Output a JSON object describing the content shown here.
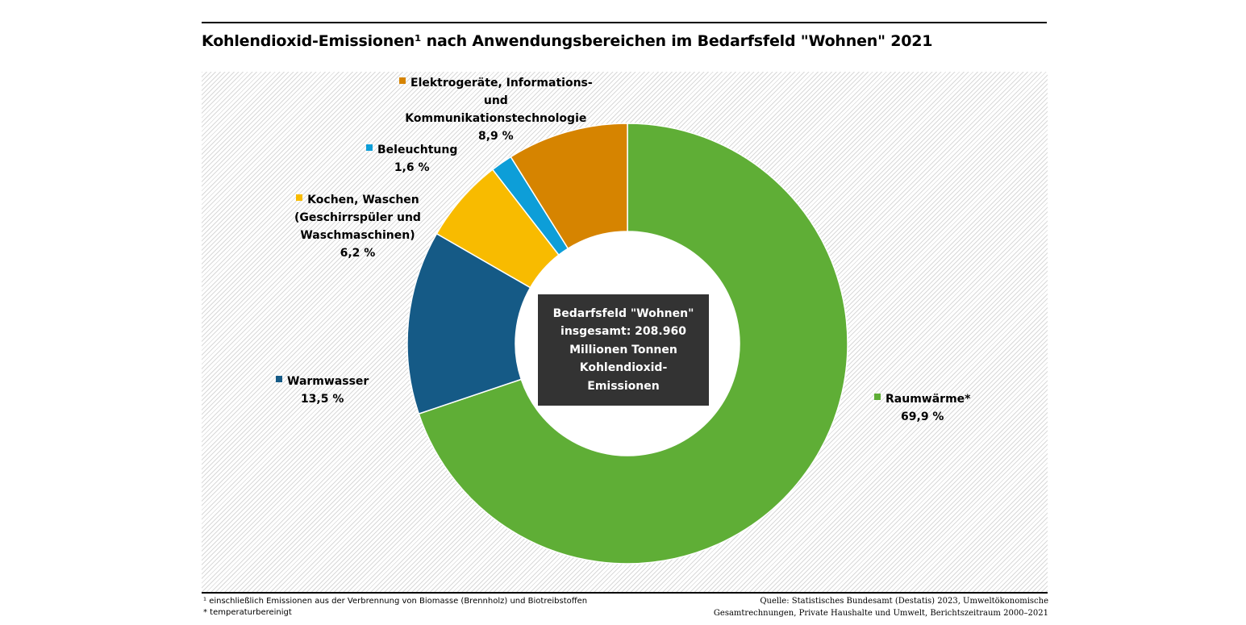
{
  "title": "Kohlendioxid-Emissionen¹ nach Anwendungsbereichen im Bedarfsfeld \"Wohnen\" 2021",
  "chart_data": {
    "type": "pie",
    "style": "donut",
    "title": "Kohlendioxid-Emissionen¹ nach Anwendungsbereichen im Bedarfsfeld \"Wohnen\" 2021",
    "unit": "%",
    "slices": [
      {
        "key": "raumwaerme",
        "label": "Raumwärme*",
        "value": 69.9,
        "value_label": "69,9 %",
        "color": "#5fae36"
      },
      {
        "key": "warmwasser",
        "label": "Warmwasser",
        "value": 13.5,
        "value_label": "13,5 %",
        "color": "#155a86"
      },
      {
        "key": "kochen",
        "label_lines": [
          "Kochen, Waschen",
          "(Geschirrspüler und",
          "Waschmaschinen)"
        ],
        "value": 6.2,
        "value_label": "6,2 %",
        "color": "#f8bb00"
      },
      {
        "key": "beleuchtung",
        "label": "Beleuchtung",
        "value": 1.6,
        "value_label": "1,6 %",
        "color": "#0d9ed8"
      },
      {
        "key": "elektro",
        "label_lines": [
          "Elektrogeräte, Informations-",
          "und",
          "Kommunikationstechnologie"
        ],
        "value": 8.9,
        "value_label": "8,9 %",
        "color": "#d68400"
      }
    ],
    "center_text": [
      "Bedarfsfeld \"Wohnen\"",
      "insgesamt:  208.960",
      "Millionen Tonnen",
      "Kohlendioxid-",
      "Emissionen"
    ]
  },
  "footnotes": [
    "¹ einschließlich Emissionen aus der Verbrennung  von Biomasse (Brennholz) und Biotreibstoffen",
    "* temperaturbereinigt"
  ],
  "source": [
    "Quelle: Statistisches Bundesamt (Destatis) 2023, Umweltökonomische",
    "Gesamtrechnungen, Private Haushalte und Umwelt, Berichtszeitraum 2000–2021"
  ]
}
